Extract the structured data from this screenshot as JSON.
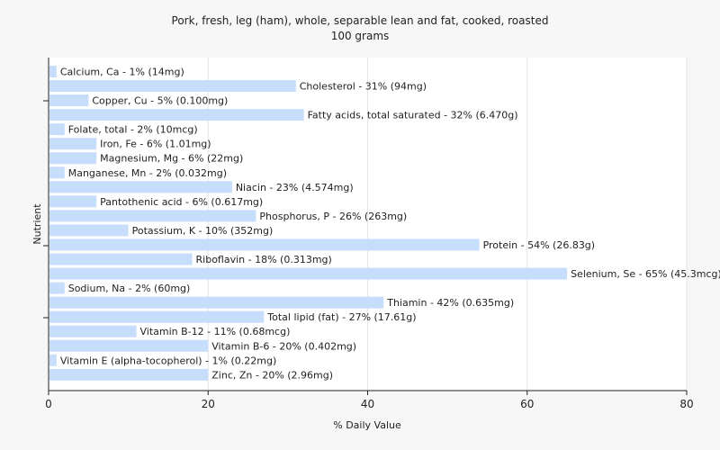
{
  "chart_data": {
    "type": "bar",
    "orientation": "horizontal",
    "title": "Pork, fresh, leg (ham), whole, separable lean and fat, cooked, roasted",
    "subtitle": "100 grams",
    "xlabel": "% Daily Value",
    "ylabel": "Nutrient",
    "xlim": [
      0,
      80
    ],
    "xticks": [
      0,
      20,
      40,
      60,
      80
    ],
    "grid": true,
    "bar_color": "#c6ddfb",
    "categories": [
      "Calcium, Ca",
      "Cholesterol",
      "Copper, Cu",
      "Fatty acids, total saturated",
      "Folate, total",
      "Iron, Fe",
      "Magnesium, Mg",
      "Manganese, Mn",
      "Niacin",
      "Pantothenic acid",
      "Phosphorus, P",
      "Potassium, K",
      "Protein",
      "Riboflavin",
      "Selenium, Se",
      "Sodium, Na",
      "Thiamin",
      "Total lipid (fat)",
      "Vitamin B-12",
      "Vitamin B-6",
      "Vitamin E (alpha-tocopherol)",
      "Zinc, Zn"
    ],
    "values": [
      1,
      31,
      5,
      32,
      2,
      6,
      6,
      2,
      23,
      6,
      26,
      10,
      54,
      18,
      65,
      2,
      42,
      27,
      11,
      20,
      1,
      20
    ],
    "labels": [
      "Calcium, Ca - 1% (14mg)",
      "Cholesterol - 31% (94mg)",
      "Copper, Cu - 5% (0.100mg)",
      "Fatty acids, total saturated - 32% (6.470g)",
      "Folate, total - 2% (10mcg)",
      "Iron, Fe - 6% (1.01mg)",
      "Magnesium, Mg - 6% (22mg)",
      "Manganese, Mn - 2% (0.032mg)",
      "Niacin - 23% (4.574mg)",
      "Pantothenic acid - 6% (0.617mg)",
      "Phosphorus, P - 26% (263mg)",
      "Potassium, K - 10% (352mg)",
      "Protein - 54% (26.83g)",
      "Riboflavin - 18% (0.313mg)",
      "Selenium, Se - 65% (45.3mcg)",
      "Sodium, Na - 2% (60mg)",
      "Thiamin - 42% (0.635mg)",
      "Total lipid (fat) - 27% (17.61g)",
      "Vitamin B-12 - 11% (0.68mcg)",
      "Vitamin B-6 - 20% (0.402mg)",
      "Vitamin E (alpha-tocopherol) - 1% (0.22mg)",
      "Zinc, Zn - 20% (2.96mg)"
    ]
  }
}
